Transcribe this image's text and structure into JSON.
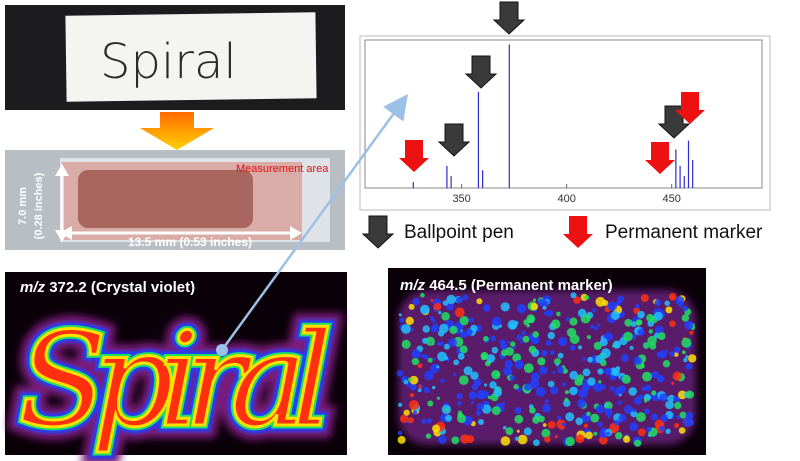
{
  "photo_label": "Spiral",
  "measurement_label": "Measurement area",
  "height_label": [
    "7.0 mm",
    "(0.28 inches)"
  ],
  "width_label": "13.5 mm (0.53 inches)",
  "images": [
    {
      "mz_prefix": "m/z",
      "mz_value": "372.2",
      "compound": "(Crystal violet)"
    },
    {
      "mz_prefix": "m/z",
      "mz_value": "464.5",
      "compound": "(Permanent marker)"
    }
  ],
  "legend": [
    {
      "name": "Ballpoint pen",
      "color": "#3a3a3a"
    },
    {
      "name": "Permanent marker",
      "color": "#ee1111"
    }
  ],
  "chart_data": {
    "type": "stem",
    "color": "#2a2ad0",
    "x": [
      327,
      343,
      345,
      358,
      360,
      372.7,
      452,
      454,
      456,
      458,
      460
    ],
    "values": [
      4,
      15,
      8,
      65,
      12,
      97,
      26,
      15,
      8,
      32,
      19
    ],
    "xlim": [
      304,
      493
    ],
    "ylim": [
      0,
      100
    ],
    "xticks": [
      350,
      400,
      450
    ]
  }
}
